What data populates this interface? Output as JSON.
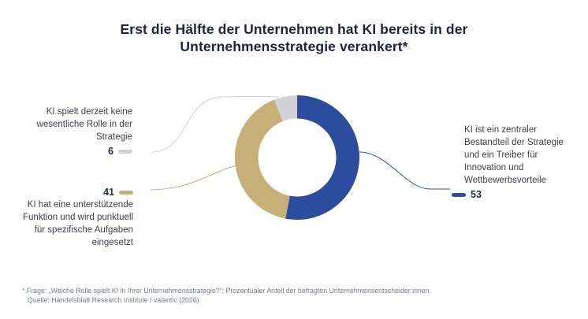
{
  "title": {
    "line1": "Erst die Hälfte der Unternehmen hat KI bereits in der",
    "line2": "Unternehmensstrategie verankert*"
  },
  "chart_data": {
    "type": "pie",
    "subtype": "donut",
    "title": "Erst die Hälfte der Unternehmen hat KI bereits in der Unternehmensstrategie verankert*",
    "unit": "percent of surveyed decision makers",
    "start_angle_deg": 0,
    "direction": "clockwise",
    "legend_position": "callout-labels",
    "segments": [
      {
        "id": "central",
        "label": "KI ist ein zentraler Bestandteil der Strategie und ein Treiber für Innovation und Wettbewerbsvorteile",
        "value": 53,
        "color": "#2c4c9e"
      },
      {
        "id": "supporting",
        "label": "KI hat eine unterstützende Funktion und wird punktuell für spezifische Aufgaben eingesetzt",
        "value": 41,
        "color": "#c6b078"
      },
      {
        "id": "none",
        "label": "KI spielt derzeit keine wesentliche Rolle in der Strategie",
        "value": 6,
        "color": "#d2d2d4"
      }
    ]
  },
  "callouts": [
    {
      "id": "none",
      "text": "KI spielt derzeit keine wesentliche Rolle in der Strategie",
      "value": "6"
    },
    {
      "id": "supporting",
      "text": "KI hat eine unterstützende Funktion und wird punktuell für spezifische Aufgaben eingesetzt",
      "value": "41"
    },
    {
      "id": "central",
      "text": "KI ist ein zentraler Bestandteil der Strategie und ein Treiber für Innovation und Wettbewerbsvorteile",
      "value": "53"
    }
  ],
  "footnote": {
    "line1": "* Frage: „Welche Rolle spielt KI in Ihrer Unternehmensstrategie?“; Prozentualer Anteil der befragten Unternehmensentscheider:innen.",
    "line2": "Quelle: Handelsblatt Research Institute / valantic (2026)"
  }
}
